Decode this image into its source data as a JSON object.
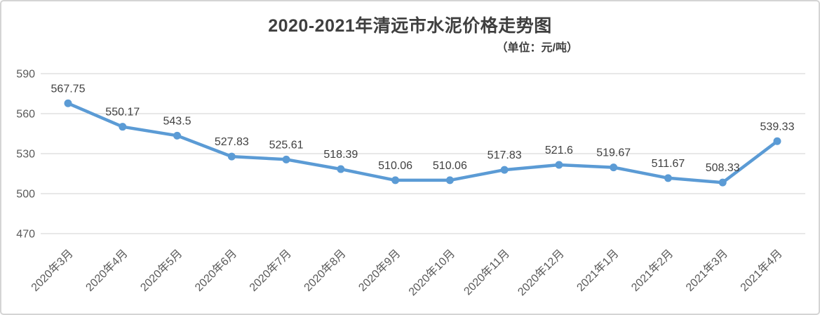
{
  "chart": {
    "title": "2020-2021年清远市水泥价格走势图",
    "unit_label": "（单位：元/吨）"
  },
  "chart_data": {
    "type": "line",
    "title": "2020-2021年清远市水泥价格走势图",
    "subtitle": "（单位：元/吨）",
    "categories": [
      "2020年3月",
      "2020年4月",
      "2020年5月",
      "2020年6月",
      "2020年7月",
      "2020年8月",
      "2020年9月",
      "2020年10月",
      "2020年11月",
      "2020年12月",
      "2021年1月",
      "2021年2月",
      "2021年3月",
      "2021年4月"
    ],
    "values": [
      567.75,
      550.17,
      543.5,
      527.83,
      525.61,
      518.39,
      510.06,
      510.06,
      517.83,
      521.6,
      519.67,
      511.67,
      508.33,
      539.33
    ],
    "data_labels": [
      "567.75",
      "550.17",
      "543.5",
      "527.83",
      "525.61",
      "518.39",
      "510.06",
      "510.06",
      "517.83",
      "521.6",
      "519.67",
      "511.67",
      "508.33",
      "539.33"
    ],
    "xlabel": "",
    "ylabel": "",
    "ylim": [
      470,
      590
    ],
    "yticks": [
      470,
      500,
      530,
      560,
      590
    ],
    "grid": "horizontal",
    "legend": "none",
    "marker": "circle",
    "colors": {
      "line": "#5B9BD5",
      "marker": "#5B9BD5",
      "grid": "#D9D9D9",
      "axis_text": "#595959",
      "data_label_text": "#404040",
      "title_text": "#3F3F3F",
      "card_border": "#D4D4D4"
    }
  }
}
